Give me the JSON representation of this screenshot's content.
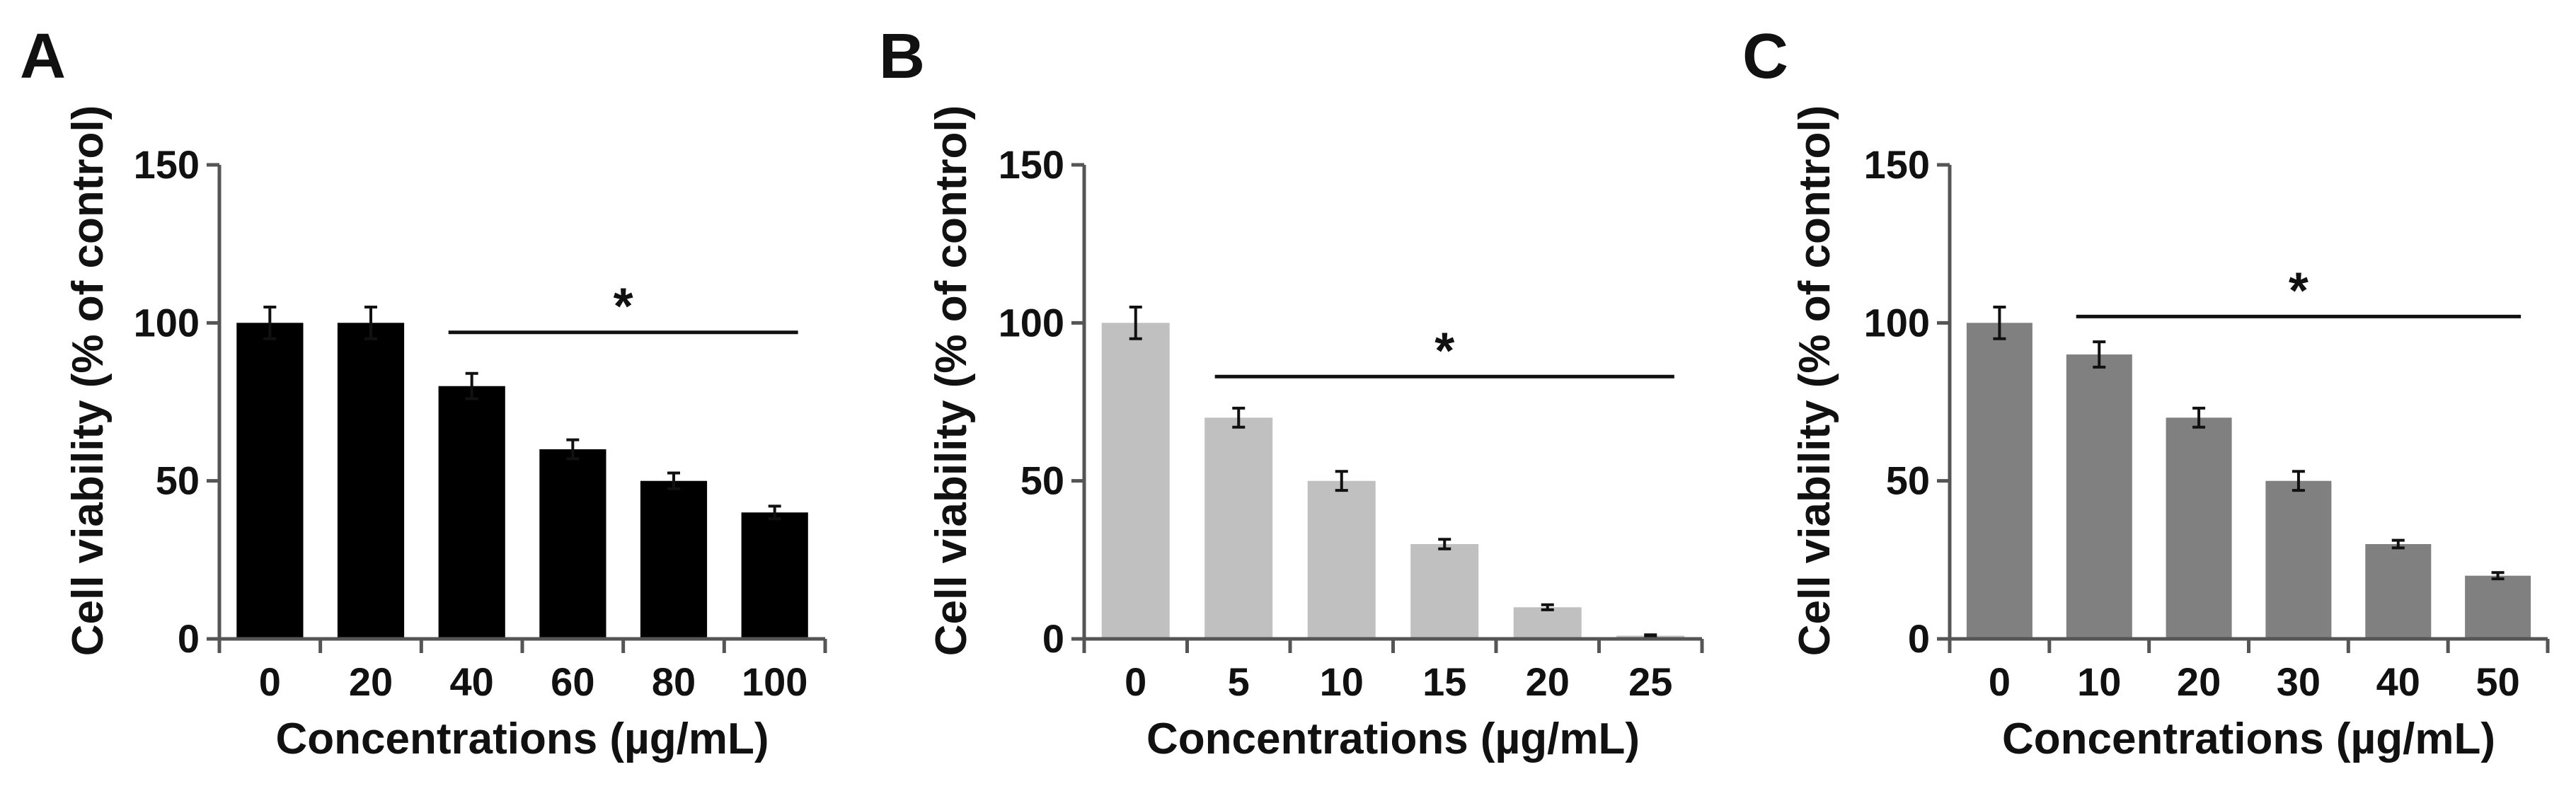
{
  "chart_data": [
    {
      "type": "bar",
      "panel_label": "A",
      "categories": [
        "0",
        "20",
        "40",
        "60",
        "80",
        "100"
      ],
      "values": [
        100,
        100,
        80,
        60,
        50,
        40
      ],
      "errors": [
        5,
        5,
        4,
        3,
        2.5,
        2
      ],
      "bar_color": "#000000",
      "xlabel": "Concentrations (µg/mL)",
      "ylabel": "Cell viability (% of control)",
      "ylim": [
        0,
        150
      ],
      "yticks": [
        "0",
        "50",
        "100",
        "150"
      ],
      "grid": false,
      "significance": {
        "label": "*",
        "from": "40",
        "to": "100",
        "level": 97
      }
    },
    {
      "type": "bar",
      "panel_label": "B",
      "categories": [
        "0",
        "5",
        "10",
        "15",
        "20",
        "25"
      ],
      "values": [
        100,
        70,
        50,
        30,
        10,
        1
      ],
      "errors": [
        5,
        3,
        3,
        1.5,
        0.8,
        0.3
      ],
      "bar_color": "#c0c0c0",
      "xlabel": "Concentrations (µg/mL)",
      "ylabel": "Cell viability (% of control)",
      "ylim": [
        0,
        150
      ],
      "yticks": [
        "0",
        "50",
        "100",
        "150"
      ],
      "grid": false,
      "significance": {
        "label": "*",
        "from": "5",
        "to": "25",
        "level": 83
      }
    },
    {
      "type": "bar",
      "panel_label": "C",
      "categories": [
        "0",
        "10",
        "20",
        "30",
        "40",
        "50"
      ],
      "values": [
        100,
        90,
        70,
        50,
        30,
        20
      ],
      "errors": [
        5,
        4,
        3,
        3,
        1.2,
        1
      ],
      "bar_color": "#808080",
      "xlabel": "Concentrations (µg/mL)",
      "ylabel": "Cell viability (% of control)",
      "ylim": [
        0,
        150
      ],
      "yticks": [
        "0",
        "50",
        "100",
        "150"
      ],
      "grid": false,
      "significance": {
        "label": "*",
        "from": "10",
        "to": "50",
        "level": 102
      }
    }
  ]
}
